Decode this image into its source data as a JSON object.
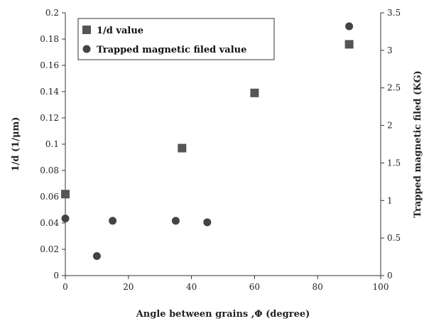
{
  "chart_data": {
    "type": "scatter",
    "xlabel": "Angle between grains ,Φ (degree)",
    "ylabel": "1/d (1/μm)",
    "y2label": "Trapped magnetic filed (KG)",
    "xlim": [
      0,
      100
    ],
    "ylim": [
      0,
      0.2
    ],
    "y2lim": [
      0,
      3.5
    ],
    "x_ticks": [
      "0",
      "20",
      "40",
      "60",
      "80",
      "100"
    ],
    "y_ticks": [
      "0",
      "0.02",
      "0.04",
      "0.06",
      "0.08",
      "0.1",
      "0.12",
      "0.14",
      "0.16",
      "0.18",
      "0.2"
    ],
    "y2_ticks": [
      "0",
      "0.5",
      "1",
      "1.5",
      "2",
      "2.5",
      "3",
      "3.5"
    ],
    "grid": false,
    "legend_position": "top-left",
    "series": [
      {
        "name": "1/d value",
        "axis": "left",
        "marker": "square",
        "color": "#555555",
        "points": [
          [
            0,
            0.062
          ],
          [
            37,
            0.097
          ],
          [
            60,
            0.139
          ],
          [
            90,
            0.176
          ]
        ]
      },
      {
        "name": "Trapped magnetic filed value",
        "axis": "right",
        "marker": "circle",
        "color": "#444444",
        "points": [
          [
            0,
            0.76
          ],
          [
            10,
            0.26
          ],
          [
            15,
            0.73
          ],
          [
            35,
            0.73
          ],
          [
            45,
            0.71
          ],
          [
            90,
            3.32
          ]
        ]
      }
    ]
  }
}
